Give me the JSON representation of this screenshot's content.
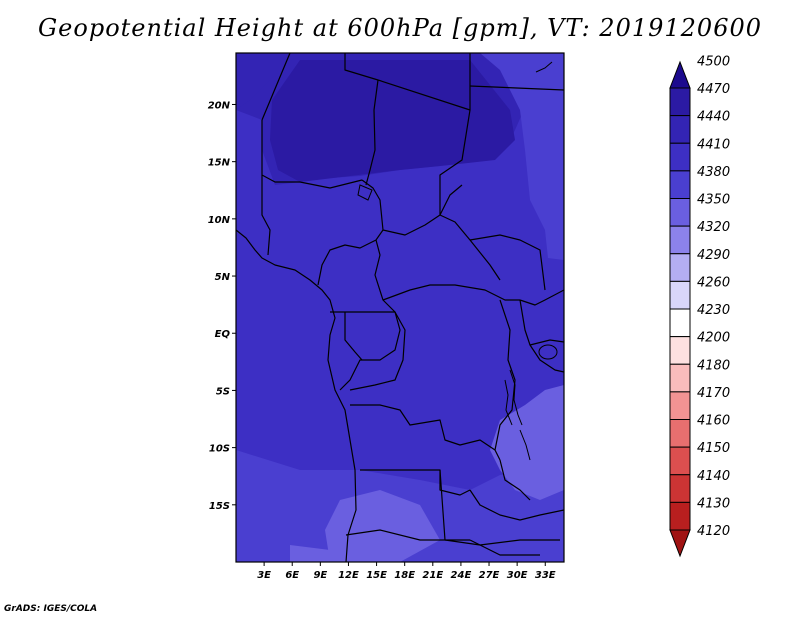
{
  "title": "Geopotential Height at 600hPa [gpm], VT: 2019120600",
  "credit": "GrADS: IGES/COLA",
  "map": {
    "lon_range": [
      0,
      35
    ],
    "lat_range": [
      -20,
      24.5
    ],
    "lat_ticks": [
      {
        "value": 20,
        "label": "20N"
      },
      {
        "value": 15,
        "label": "15N"
      },
      {
        "value": 10,
        "label": "10N"
      },
      {
        "value": 5,
        "label": "5N"
      },
      {
        "value": 0,
        "label": "EQ"
      },
      {
        "value": -5,
        "label": "5S"
      },
      {
        "value": -10,
        "label": "10S"
      },
      {
        "value": -15,
        "label": "15S"
      }
    ],
    "lon_ticks": [
      {
        "value": 3,
        "label": "3E"
      },
      {
        "value": 6,
        "label": "6E"
      },
      {
        "value": 9,
        "label": "9E"
      },
      {
        "value": 12,
        "label": "12E"
      },
      {
        "value": 15,
        "label": "15E"
      },
      {
        "value": 18,
        "label": "18E"
      },
      {
        "value": 21,
        "label": "21E"
      },
      {
        "value": 24,
        "label": "24E"
      },
      {
        "value": 27,
        "label": "27E"
      },
      {
        "value": 30,
        "label": "30E"
      },
      {
        "value": 33,
        "label": "33E"
      }
    ],
    "fill_colors": {
      "4380": "#4a3fd0",
      "4410": "#3d2fc4",
      "4440": "#3324b4",
      "4470": "#2b1aa3",
      "4350": "#6a5fe0"
    }
  },
  "colorbar": {
    "labels": [
      "4500",
      "4470",
      "4440",
      "4410",
      "4380",
      "4350",
      "4320",
      "4290",
      "4260",
      "4230",
      "4200",
      "4180",
      "4170",
      "4160",
      "4150",
      "4140",
      "4130",
      "4120"
    ],
    "colors": [
      "#1c0a8e",
      "#2b1aa3",
      "#3324b4",
      "#3d2fc4",
      "#4a3fd0",
      "#6a5fe0",
      "#8c82eb",
      "#b4aef3",
      "#d9d6fa",
      "#ffffff",
      "#fde0e0",
      "#f9bcbc",
      "#f29393",
      "#e86f6f",
      "#dc4f4f",
      "#cc3434",
      "#b81f1f",
      "#a01313"
    ]
  }
}
